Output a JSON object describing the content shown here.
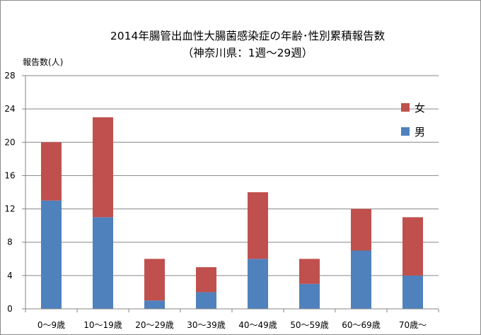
{
  "chart_data": {
    "type": "bar",
    "stacked": true,
    "title": "2014年腸管出血性大腸菌感染症の年齢･性別累積報告数",
    "subtitle": "（神奈川県：1週～29週）",
    "ylabel": "報告数(人)",
    "xlabel": "",
    "ylim": [
      0,
      28
    ],
    "yticks": [
      0,
      4,
      8,
      12,
      16,
      20,
      24,
      28
    ],
    "grid": true,
    "legend_position": "right",
    "categories": [
      "0～9歳",
      "10～19歳",
      "20～29歳",
      "30～39歳",
      "40～49歳",
      "50～59歳",
      "60～69歳",
      "70歳～"
    ],
    "series": [
      {
        "name": "男",
        "color": "#4f81bd",
        "values": [
          13,
          11,
          1,
          2,
          6,
          3,
          7,
          4
        ]
      },
      {
        "name": "女",
        "color": "#c0504d",
        "values": [
          7,
          12,
          5,
          3,
          8,
          3,
          5,
          7
        ]
      }
    ]
  }
}
